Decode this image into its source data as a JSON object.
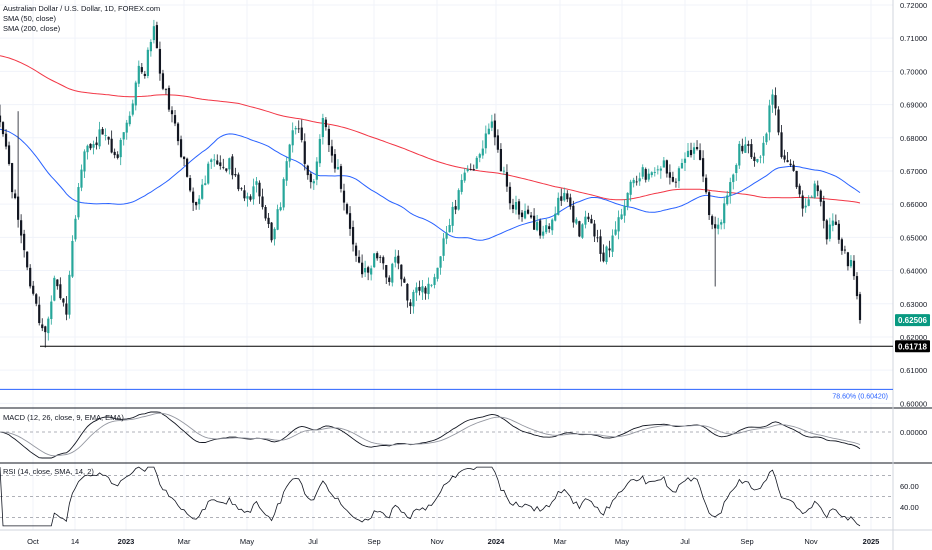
{
  "header": {
    "title": "Australian Dollar / U.S. Dollar, 1D, FOREX.com",
    "sma50_label": "SMA (50, close)",
    "sma200_label": "SMA (200, close)"
  },
  "macd_label": "MACD (12, 26, close, 9, EMA, EMA)",
  "rsi_label": "RSI (14, close, SMA, 14, 2)",
  "colors": {
    "up": "#26a69a",
    "down": "#131722",
    "sma50": "#2962ff",
    "sma200": "#f23645",
    "last_price_badge": "#089981",
    "support_badge": "#000000",
    "fib_line": "#2962ff",
    "grid": "#e0e3eb"
  },
  "chart_data": [
    {
      "type": "candlestick",
      "title": "Australian Dollar / U.S. Dollar, 1D, FOREX.com",
      "x_tick_labels": [
        "Oct",
        "14",
        "2023",
        "Mar",
        "May",
        "Jul",
        "Sep",
        "Nov",
        "2024",
        "Mar",
        "May",
        "Jul",
        "Sep",
        "Nov",
        "2025"
      ],
      "y_tick_labels": [
        "0.72000",
        "0.71000",
        "0.70000",
        "0.69000",
        "0.68000",
        "0.67000",
        "0.66000",
        "0.65000",
        "0.64000",
        "0.63000",
        "0.62000",
        "0.61000",
        "0.60000"
      ],
      "ylim": [
        0.5995,
        0.7215
      ],
      "last_price": 0.62506,
      "last_price_label": "0.62506",
      "support_level": 0.61718,
      "support_label": "0.61718",
      "fib_level": 0.6042,
      "fib_label": "78.60% (0.60420)",
      "series": [
        {
          "name": "SMA (50, close)",
          "color": "#2962ff"
        },
        {
          "name": "SMA (200, close)",
          "color": "#f23645"
        }
      ],
      "anchor_points": [
        [
          0,
          0.684
        ],
        [
          6,
          0.676
        ],
        [
          13,
          0.663
        ],
        [
          20,
          0.652
        ],
        [
          28,
          0.638
        ],
        [
          35,
          0.63
        ],
        [
          40,
          0.624
        ],
        [
          45,
          0.62
        ],
        [
          50,
          0.628
        ],
        [
          55,
          0.637
        ],
        [
          60,
          0.632
        ],
        [
          66,
          0.626
        ],
        [
          72,
          0.647
        ],
        [
          78,
          0.664
        ],
        [
          85,
          0.678
        ],
        [
          92,
          0.674
        ],
        [
          100,
          0.684
        ],
        [
          108,
          0.68
        ],
        [
          116,
          0.672
        ],
        [
          124,
          0.681
        ],
        [
          132,
          0.69
        ],
        [
          138,
          0.702
        ],
        [
          144,
          0.699
        ],
        [
          150,
          0.708
        ],
        [
          155,
          0.713
        ],
        [
          160,
          0.699
        ],
        [
          165,
          0.693
        ],
        [
          170,
          0.689
        ],
        [
          176,
          0.684
        ],
        [
          182,
          0.675
        ],
        [
          190,
          0.666
        ],
        [
          196,
          0.658
        ],
        [
          204,
          0.667
        ],
        [
          212,
          0.673
        ],
        [
          220,
          0.67
        ],
        [
          230,
          0.673
        ],
        [
          240,
          0.664
        ],
        [
          248,
          0.66
        ],
        [
          256,
          0.667
        ],
        [
          264,
          0.659
        ],
        [
          272,
          0.649
        ],
        [
          280,
          0.66
        ],
        [
          288,
          0.677
        ],
        [
          295,
          0.686
        ],
        [
          302,
          0.678
        ],
        [
          310,
          0.664
        ],
        [
          316,
          0.67
        ],
        [
          322,
          0.685
        ],
        [
          328,
          0.679
        ],
        [
          334,
          0.674
        ],
        [
          340,
          0.667
        ],
        [
          346,
          0.659
        ],
        [
          352,
          0.652
        ],
        [
          358,
          0.641
        ],
        [
          364,
          0.64
        ],
        [
          372,
          0.642
        ],
        [
          380,
          0.646
        ],
        [
          388,
          0.638
        ],
        [
          396,
          0.643
        ],
        [
          404,
          0.636
        ],
        [
          410,
          0.631
        ],
        [
          416,
          0.634
        ],
        [
          424,
          0.633
        ],
        [
          432,
          0.636
        ],
        [
          440,
          0.644
        ],
        [
          448,
          0.653
        ],
        [
          456,
          0.66
        ],
        [
          464,
          0.668
        ],
        [
          472,
          0.67
        ],
        [
          480,
          0.674
        ],
        [
          487,
          0.683
        ],
        [
          492,
          0.683
        ],
        [
          498,
          0.676
        ],
        [
          504,
          0.668
        ],
        [
          510,
          0.662
        ],
        [
          516,
          0.659
        ],
        [
          524,
          0.658
        ],
        [
          532,
          0.654
        ],
        [
          540,
          0.652
        ],
        [
          548,
          0.653
        ],
        [
          556,
          0.66
        ],
        [
          564,
          0.662
        ],
        [
          572,
          0.656
        ],
        [
          580,
          0.652
        ],
        [
          588,
          0.657
        ],
        [
          596,
          0.65
        ],
        [
          604,
          0.643
        ],
        [
          610,
          0.648
        ],
        [
          618,
          0.656
        ],
        [
          626,
          0.662
        ],
        [
          634,
          0.668
        ],
        [
          642,
          0.67
        ],
        [
          650,
          0.669
        ],
        [
          658,
          0.669
        ],
        [
          666,
          0.672
        ],
        [
          674,
          0.667
        ],
        [
          682,
          0.672
        ],
        [
          690,
          0.676
        ],
        [
          696,
          0.679
        ],
        [
          702,
          0.672
        ],
        [
          708,
          0.66
        ],
        [
          714,
          0.651
        ],
        [
          720,
          0.654
        ],
        [
          726,
          0.664
        ],
        [
          732,
          0.666
        ],
        [
          738,
          0.676
        ],
        [
          744,
          0.679
        ],
        [
          750,
          0.675
        ],
        [
          756,
          0.672
        ],
        [
          762,
          0.676
        ],
        [
          768,
          0.686
        ],
        [
          772,
          0.691
        ],
        [
          776,
          0.69
        ],
        [
          780,
          0.677
        ],
        [
          786,
          0.674
        ],
        [
          792,
          0.67
        ],
        [
          798,
          0.665
        ],
        [
          804,
          0.659
        ],
        [
          810,
          0.662
        ],
        [
          816,
          0.666
        ],
        [
          820,
          0.661
        ],
        [
          826,
          0.65
        ],
        [
          832,
          0.654
        ],
        [
          838,
          0.652
        ],
        [
          844,
          0.645
        ],
        [
          850,
          0.642
        ],
        [
          855,
          0.639
        ],
        [
          858,
          0.631
        ],
        [
          860,
          0.6251
        ]
      ]
    },
    {
      "type": "line",
      "title": "MACD (12, 26, close, 9, EMA, EMA)",
      "y_tick_labels": [
        "0.00000"
      ],
      "zero": 0.0
    },
    {
      "type": "line",
      "title": "RSI (14, close, SMA, 14, 2)",
      "y_tick_labels": [
        "60.00",
        "40.00"
      ],
      "levels": [
        70,
        50,
        30
      ],
      "ylim": [
        20,
        80
      ]
    }
  ]
}
